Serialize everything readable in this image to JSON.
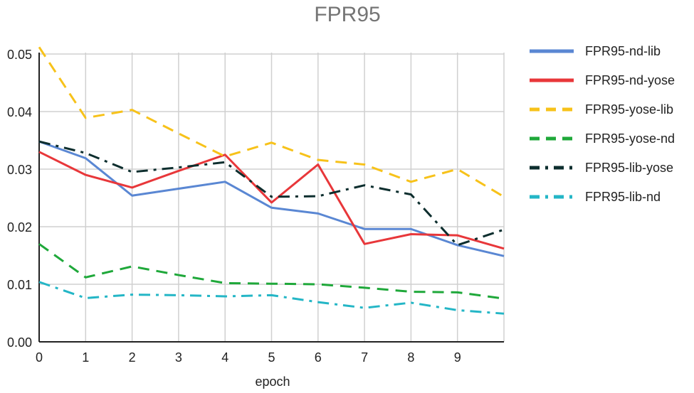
{
  "chart_data": {
    "type": "line",
    "title": "FPR95",
    "xlabel": "epoch",
    "ylabel": "",
    "x": [
      0,
      1,
      2,
      3,
      4,
      5,
      6,
      7,
      8,
      9,
      10
    ],
    "x_tick_labels": [
      "0",
      "1",
      "2",
      "3",
      "4",
      "5",
      "6",
      "7",
      "8",
      "9"
    ],
    "xlim": [
      0,
      10
    ],
    "ylim": [
      0,
      0.05
    ],
    "y_tick_labels": [
      "0.00",
      "0.01",
      "0.02",
      "0.03",
      "0.04",
      "0.05"
    ],
    "y_tick_values": [
      0,
      0.01,
      0.02,
      0.03,
      0.04,
      0.05
    ],
    "grid": true,
    "legend_position": "right",
    "series": [
      {
        "name": "FPR95-nd-lib",
        "color": "#5a87d3",
        "dash": "solid",
        "values": [
          0.0348,
          0.0319,
          0.0254,
          0.0266,
          0.0278,
          0.0233,
          0.0223,
          0.0196,
          0.0196,
          0.0168,
          0.0149
        ]
      },
      {
        "name": "FPR95-nd-yose",
        "color": "#e8373a",
        "dash": "solid",
        "values": [
          0.033,
          0.029,
          0.0268,
          0.0297,
          0.0325,
          0.0242,
          0.0308,
          0.017,
          0.0187,
          0.0185,
          0.0162
        ]
      },
      {
        "name": "FPR95-yose-lib",
        "color": "#f7c21a",
        "dash": "dash",
        "values": [
          0.0512,
          0.0389,
          0.0403,
          0.0362,
          0.0322,
          0.0346,
          0.0316,
          0.0308,
          0.0278,
          0.03,
          0.0252
        ]
      },
      {
        "name": "FPR95-yose-nd",
        "color": "#1fa83a",
        "dash": "dash",
        "values": [
          0.017,
          0.0112,
          0.0131,
          0.0116,
          0.0102,
          0.0101,
          0.01,
          0.0094,
          0.0087,
          0.0086,
          0.0075
        ]
      },
      {
        "name": "FPR95-lib-yose",
        "color": "#0d2e2e",
        "dash": "dashdot",
        "values": [
          0.0348,
          0.0328,
          0.0295,
          0.0303,
          0.0312,
          0.0252,
          0.0253,
          0.0272,
          0.0256,
          0.0168,
          0.0195
        ]
      },
      {
        "name": "FPR95-lib-nd",
        "color": "#24b6c6",
        "dash": "dashdot",
        "values": [
          0.0104,
          0.0076,
          0.0082,
          0.0081,
          0.0079,
          0.0081,
          0.0069,
          0.0059,
          0.0068,
          0.0055,
          0.0049
        ]
      }
    ]
  }
}
